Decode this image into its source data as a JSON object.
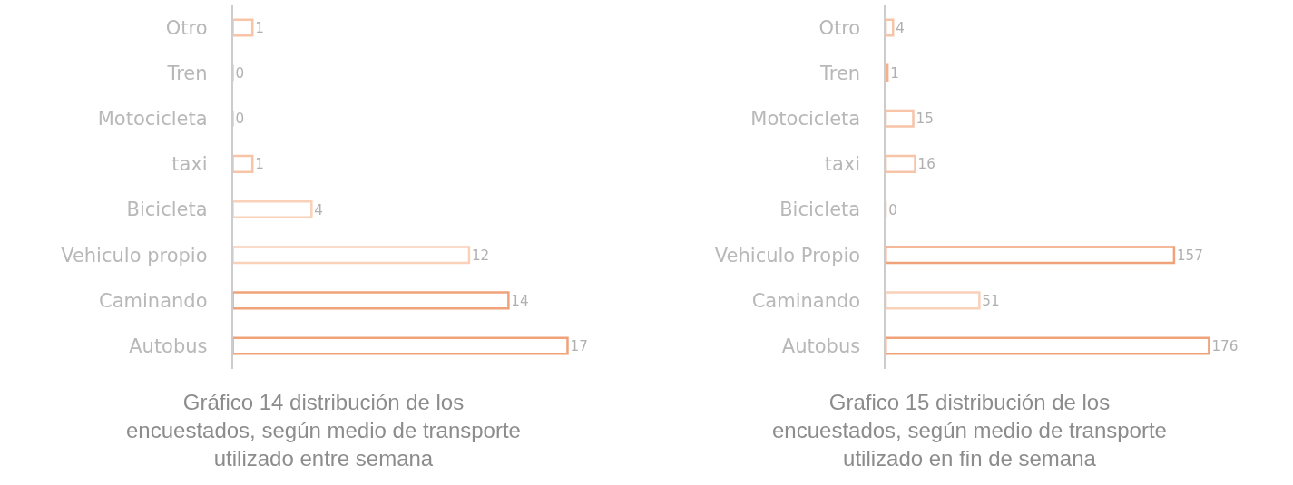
{
  "chart_data": [
    {
      "type": "bar",
      "orientation": "horizontal",
      "title": "Gráfico 14 distribución de los encuestados, según medio de transporte utilizado entre semana",
      "categories": [
        "Otro",
        "Tren",
        "Motocicleta",
        "taxi",
        "Bicicleta",
        "Vehiculo propio",
        "Caminando",
        "Autobus"
      ],
      "values": [
        1,
        0,
        0,
        1,
        4,
        12,
        14,
        17
      ],
      "colors": [
        "#f7c4a8",
        "#f7c4a8",
        "#f7c4a8",
        "#f7c4a8",
        "#f9d0b8",
        "#f9d0b8",
        "#f0a27a",
        "#f0a27a"
      ],
      "data_labels": true,
      "tick_labels": "y"
    },
    {
      "type": "bar",
      "orientation": "horizontal",
      "title": "Grafico 15 distribución de los encuestados, según medio de transporte utilizado en fin de semana",
      "categories": [
        "Otro",
        "Tren",
        "Motocicleta",
        "taxi",
        "Bicicleta",
        "Vehiculo Propio",
        "Caminando",
        "Autobus"
      ],
      "values": [
        4,
        1,
        15,
        16,
        0,
        157,
        51,
        176
      ],
      "colors": [
        "#f7c4a8",
        "#f3b08c",
        "#f7c4a8",
        "#f7c4a8",
        "#f9d0b8",
        "#f0a27a",
        "#f9d0b8",
        "#f0a27a"
      ],
      "data_labels": true,
      "tick_labels": "y"
    }
  ]
}
